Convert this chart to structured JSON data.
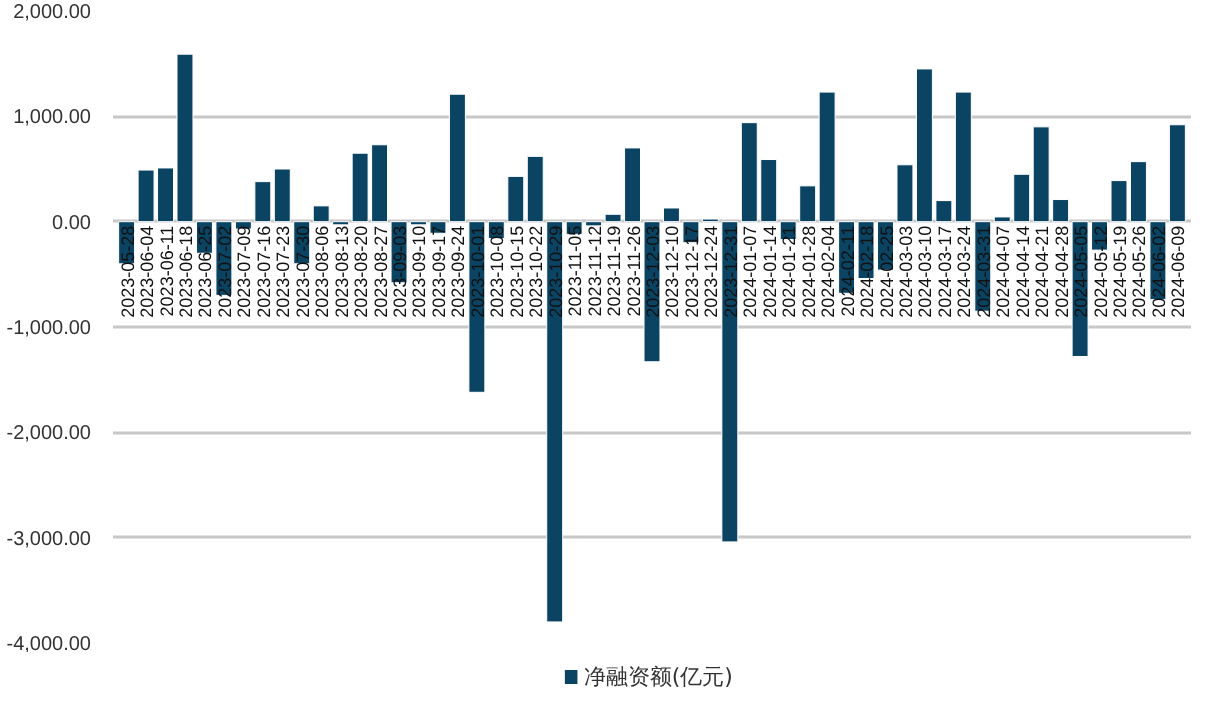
{
  "chart_data": {
    "type": "bar",
    "categories": [
      "2023-05-28",
      "2023-06-04",
      "2023-06-11",
      "2023-06-18",
      "2023-06-25",
      "2023-07-02",
      "2023-07-09",
      "2023-07-16",
      "2023-07-23",
      "2023-07-30",
      "2023-08-06",
      "2023-08-13",
      "2023-08-20",
      "2023-08-27",
      "2023-09-03",
      "2023-09-10",
      "2023-09-17",
      "2023-09-24",
      "2023-10-01",
      "2023-10-08",
      "2023-10-15",
      "2023-10-22",
      "2023-10-29",
      "2023-11-05",
      "2023-11-12",
      "2023-11-19",
      "2023-11-26",
      "2023-12-03",
      "2023-12-10",
      "2023-12-17",
      "2023-12-24",
      "2023-12-31",
      "2024-01-07",
      "2024-01-14",
      "2024-01-21",
      "2024-01-28",
      "2024-02-04",
      "2024-02-11",
      "2024-02-18",
      "2024-02-25",
      "2024-03-03",
      "2024-03-10",
      "2024-03-17",
      "2024-03-24",
      "2024-03-31",
      "2024-04-07",
      "2024-04-14",
      "2024-04-21",
      "2024-04-28",
      "2024-05-05",
      "2024-05-12",
      "2024-05-19",
      "2024-05-26",
      "2024-06-02",
      "2024-06-09"
    ],
    "series": [
      {
        "name": "净融资额(亿元)",
        "color": "#0b4463",
        "values": [
          -400,
          490,
          510,
          1590,
          -300,
          -700,
          -70,
          380,
          500,
          -400,
          150,
          -30,
          650,
          730,
          -580,
          -30,
          -110,
          1210,
          -1620,
          -160,
          430,
          620,
          -3800,
          -120,
          -40,
          70,
          700,
          -1330,
          130,
          -200,
          25,
          -3040,
          940,
          590,
          -170,
          340,
          1230,
          -680,
          -540,
          -460,
          540,
          1450,
          200,
          1230,
          -850,
          45,
          450,
          900,
          210,
          -1280,
          -270,
          390,
          570,
          -740,
          920
        ]
      }
    ],
    "ylim": [
      -4000,
      2000
    ],
    "yticks": [
      {
        "value": -4000,
        "label": "-4,000.00"
      },
      {
        "value": -3000,
        "label": "-3,000.00"
      },
      {
        "value": -2000,
        "label": "-2,000.00"
      },
      {
        "value": -1000,
        "label": "-1,000.00"
      },
      {
        "value": 0,
        "label": "0.00"
      },
      {
        "value": 1000,
        "label": "1,000.00"
      },
      {
        "value": 2000,
        "label": "2,000.00"
      }
    ],
    "grid": "y",
    "legend": "bottom"
  }
}
